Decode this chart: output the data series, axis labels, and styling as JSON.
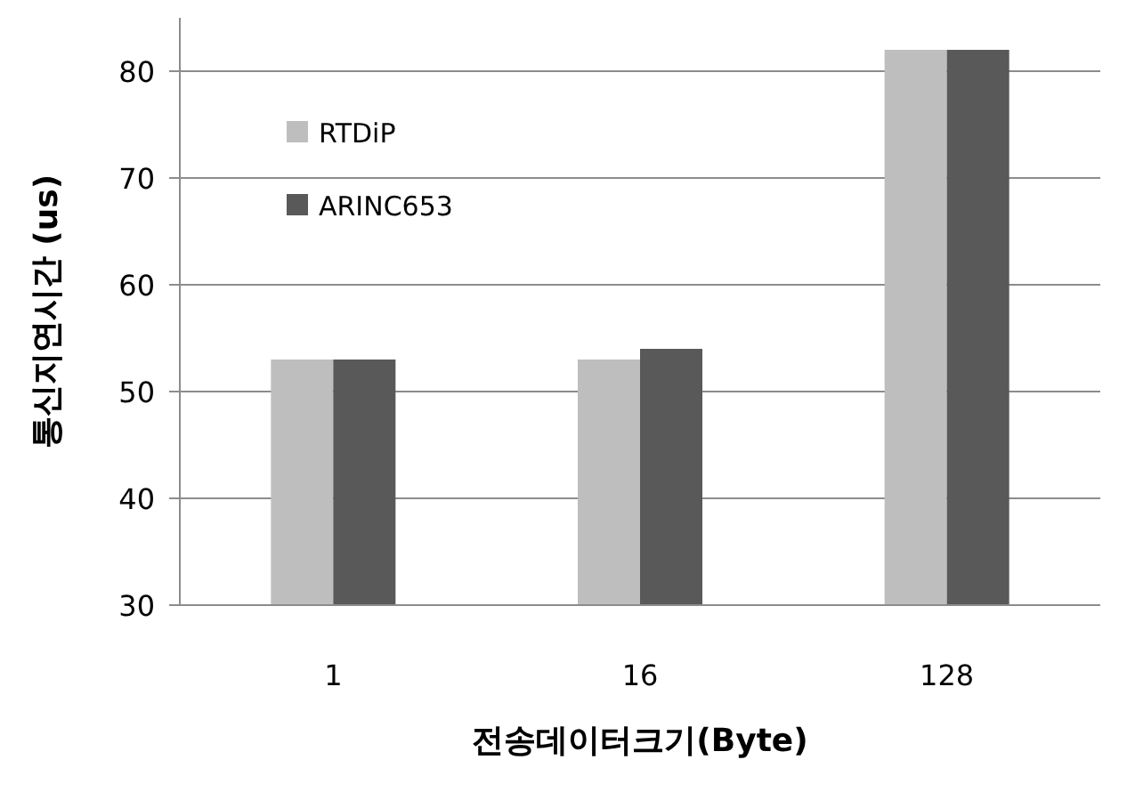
{
  "chart_data": {
    "type": "bar",
    "xlabel": "전송데이터크기(Byte)",
    "ylabel": "통신지연시간 (us)",
    "categories": [
      "1",
      "16",
      "128"
    ],
    "series": [
      {
        "name": "RTDiP",
        "color": "#bebebe",
        "values": [
          53,
          53,
          82
        ]
      },
      {
        "name": "ARINC653",
        "color": "#595959",
        "values": [
          53,
          54,
          82
        ]
      }
    ],
    "ylim": [
      30,
      85
    ],
    "yticks": [
      30,
      40,
      50,
      60,
      70,
      80
    ],
    "grid": "y",
    "legend": "top left"
  }
}
